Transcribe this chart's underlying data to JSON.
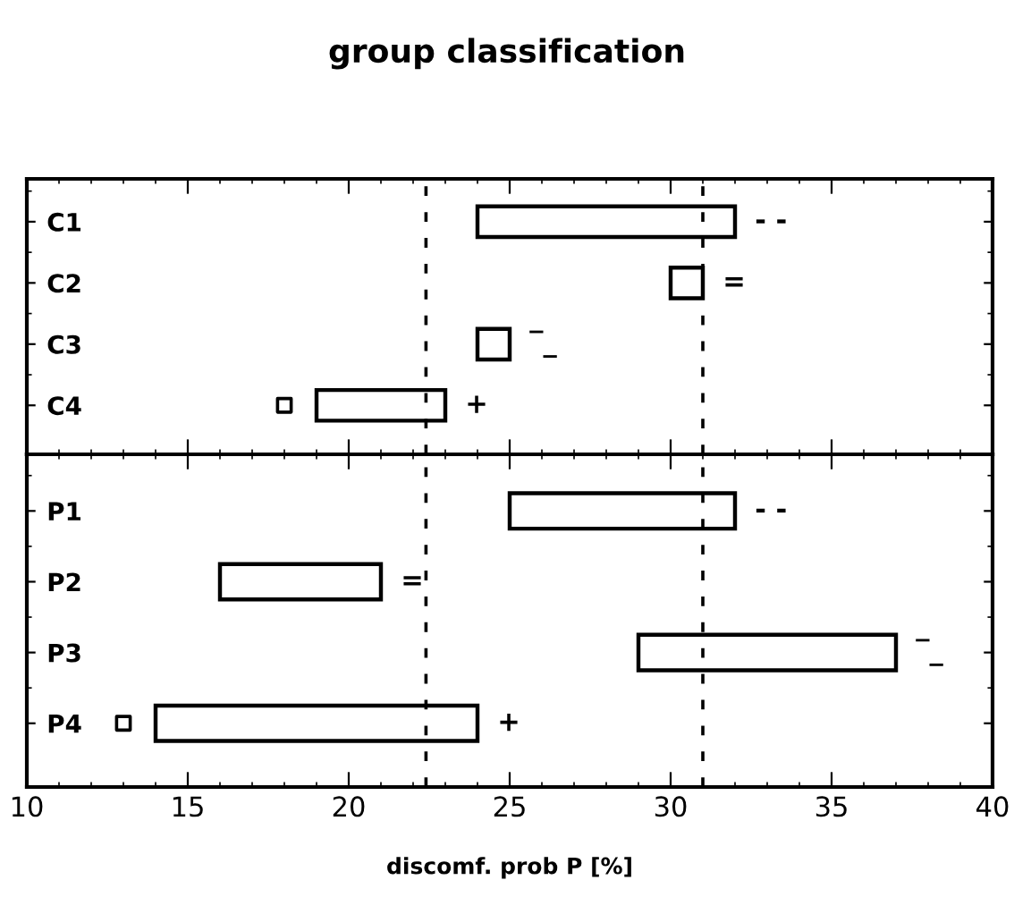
{
  "chart_data": [
    {
      "type": "bar",
      "title": "group classification",
      "orientation": "horizontal",
      "categories": [
        "C1",
        "C2",
        "C3",
        "C4"
      ],
      "base": [
        24,
        30,
        24,
        19
      ],
      "values": [
        8,
        1,
        1,
        4
      ],
      "color": "#000000",
      "series": [
        {
          "type": "scatter",
          "marker": "square",
          "color": "#000000",
          "values": [
            null,
            null,
            null,
            18
          ]
        }
      ],
      "xlim": [
        10,
        40
      ],
      "xticks": [
        10,
        15,
        20,
        25,
        30,
        35,
        40
      ],
      "tick_labels": "y",
      "ref_lines": [
        {
          "axis": "x",
          "value": 22.4,
          "line_style": "dashed",
          "color": "#000000"
        },
        {
          "axis": "x",
          "value": 31,
          "line_style": "dashed",
          "color": "#000000"
        }
      ],
      "annotations": [
        "- -",
        "=",
        "‾_",
        "+"
      ]
    },
    {
      "type": "bar",
      "orientation": "horizontal",
      "categories": [
        "P1",
        "P2",
        "P3",
        "P4"
      ],
      "base": [
        25,
        16,
        29,
        14
      ],
      "values": [
        7,
        5,
        8,
        10
      ],
      "color": "#000000",
      "series": [
        {
          "type": "scatter",
          "marker": "square",
          "color": "#000000",
          "values": [
            null,
            null,
            null,
            13
          ]
        }
      ],
      "xlim": [
        10,
        40
      ],
      "xticks": [
        10,
        15,
        20,
        25,
        30,
        35,
        40
      ],
      "xlabel": "discomf. prob P [%]",
      "ref_lines": [
        {
          "axis": "x",
          "value": 22.4,
          "line_style": "dashed",
          "color": "#000000"
        },
        {
          "axis": "x",
          "value": 31,
          "line_style": "dashed",
          "color": "#000000"
        }
      ],
      "annotations": [
        "- -",
        "=",
        "‾_",
        "+"
      ]
    }
  ]
}
